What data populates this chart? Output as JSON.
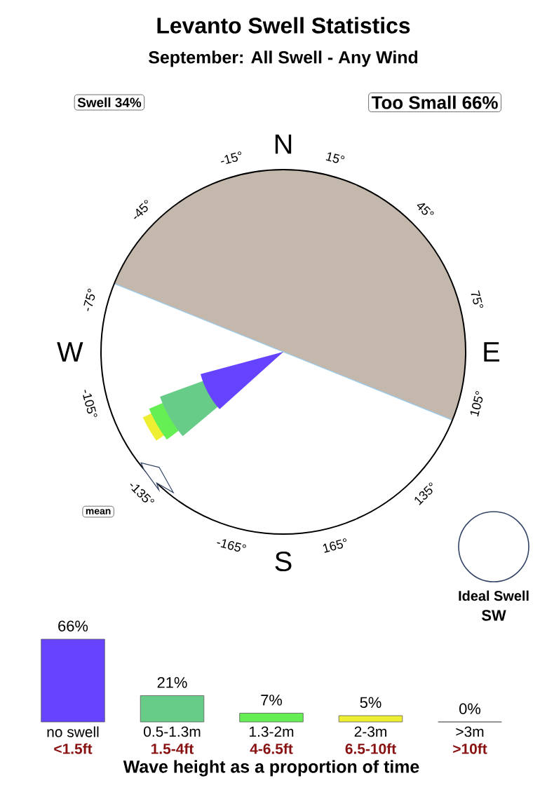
{
  "chart_data": [
    {
      "type": "other",
      "title": "Levanto Swell Statistics",
      "subtitle": "September: All Swell - Any Wind",
      "annotations": [
        "Swell 34%",
        "Too Small 66%",
        "N",
        "E",
        "S",
        "W",
        "-15°",
        "15°",
        "-45°",
        "45°",
        "-75°",
        "75°",
        "-105°",
        "105°",
        "-135°",
        "135°",
        "-165°",
        "165°",
        "mean",
        "Ideal Swell",
        "SW"
      ]
    },
    {
      "type": "bar",
      "categories": [
        "no swell",
        "0.5-1.3m",
        "1.3-2m",
        "2-3m",
        ">3m"
      ],
      "values": [
        66,
        21,
        7,
        5,
        0
      ],
      "colors": [
        "#6644ff",
        "#66cc88",
        "#66ee55",
        "#eeee33",
        "#888888"
      ],
      "value_labels": [
        "66%",
        "21%",
        "7%",
        "5%",
        "0%"
      ],
      "annotations": [
        "<1.5ft",
        "1.5-4ft",
        "4-6.5ft",
        "6.5-10ft",
        ">10ft"
      ],
      "xlabel": "Wave height as a proportion of time"
    }
  ]
}
